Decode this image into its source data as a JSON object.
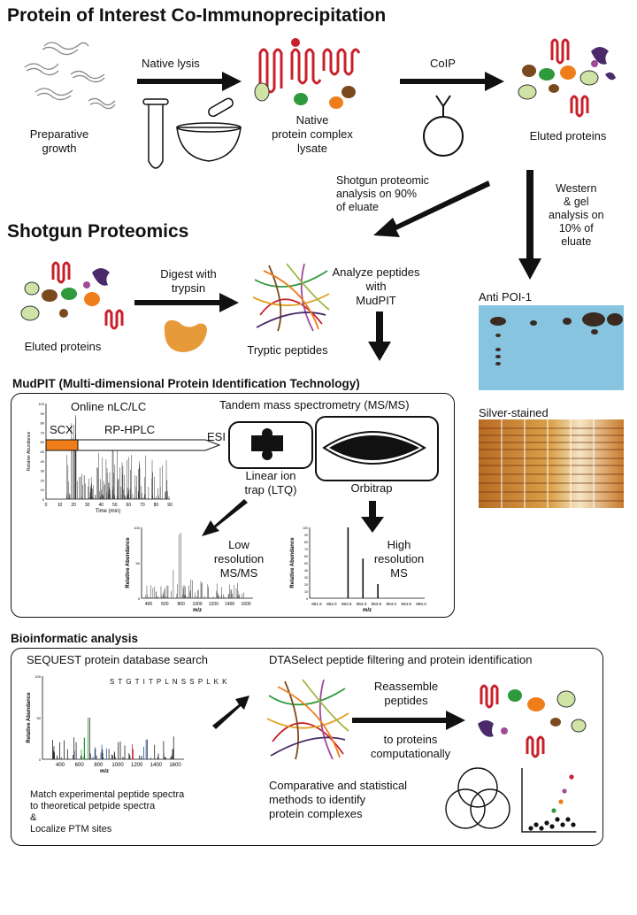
{
  "titles": {
    "main": "Protein of Interest Co-Immunoprecipitation",
    "shotgun": "Shotgun Proteomics",
    "mudpit": "MudPIT (Multi-dimensional Protein Identification Technology)",
    "bioinf": "Bioinformatic analysis"
  },
  "coip": {
    "preparative": "Preparative\ngrowth",
    "native_lysis": "Native lysis",
    "lysate": "Native\nprotein complex\nlysate",
    "coip": "CoIP",
    "eluted": "Eluted proteins",
    "shotgun_analysis": "Shotgun proteomic\nanalysis on 90%\nof eluate",
    "western": "Western\n& gel\nanalysis on\n10% of\neluate"
  },
  "shotgun": {
    "eluted": "Eluted proteins",
    "digest": "Digest with\ntrypsin",
    "tryptic": "Tryptic peptides",
    "analyze": "Analyze peptides\nwith\nMudPIT"
  },
  "gels": {
    "anti": "Anti POI-1",
    "silver": "Silver-stained"
  },
  "mudpit": {
    "online": "Online nLC/LC",
    "tandem": "Tandem mass spectrometry (MS/MS)",
    "scx": "SCX",
    "rphplc": "RP-HPLC",
    "esi": "ESI",
    "linear": "Linear ion\ntrap (LTQ)",
    "orbitrap": "Orbitrap",
    "low": "Low\nresolution\nMS/MS",
    "high": "High\nresolution\nMS",
    "time_axis": "Time (min)",
    "rel_ab": "Relative Abundance",
    "mz": "m/z",
    "time_ticks": [
      "0",
      "10",
      "20",
      "30",
      "40",
      "50",
      "60",
      "70",
      "80",
      "90"
    ],
    "y_ticks": [
      "0",
      "50",
      "100"
    ],
    "y_ticks_full": [
      "0",
      "5",
      "10",
      "15",
      "20",
      "25",
      "30",
      "35",
      "40",
      "45",
      "50",
      "55",
      "60",
      "65",
      "70",
      "75",
      "80",
      "85",
      "90",
      "95",
      "100"
    ],
    "y_ticks_pp": [
      "0",
      "50",
      "100"
    ],
    "low_ticks": [
      "400",
      "600",
      "800",
      "1000",
      "1200",
      "1400",
      "1600"
    ],
    "high_ticks": [
      "851.5",
      "852.0",
      "852.5",
      "853.0",
      "853.5",
      "854.0",
      "854.5",
      "855.0"
    ]
  },
  "bioinf": {
    "sequest": "SEQUEST protein database search",
    "sequence": "S T G T I T P L N S S P L K K",
    "match": "Match experimental peptide spectra\nto theoretical petpide spectra\n&\nLocalize PTM sites",
    "dtaselect": "DTASelect peptide filtering and protein identification",
    "reassemble": "Reassemble\npeptides",
    "to_proteins": "to proteins\ncomputationally",
    "comparative": "Comparative and statistical\nmethods to identify\nprotein complexes",
    "seq_ticks": [
      "400",
      "600",
      "800",
      "1000",
      "1200",
      "1400",
      "1600"
    ]
  },
  "colors": {
    "protein_red": "#c8202a",
    "orange": "#ef7d1a",
    "green": "#2e9a3c",
    "lightgreen": "#cfe3a6",
    "brown": "#7a4a1e",
    "purple": "#4a2a6a",
    "blot_blue": "#86c4e0",
    "gel_gold": "#d9a24a"
  }
}
